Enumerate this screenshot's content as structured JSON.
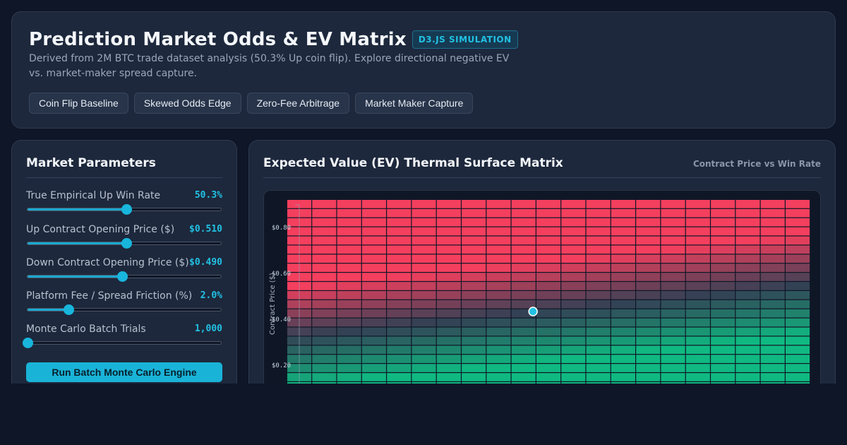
{
  "header": {
    "title": "Prediction Market Odds & EV Matrix",
    "badge": "D3.JS SIMULATION",
    "subtitle": "Derived from 2M BTC trade dataset analysis (50.3% Up coin flip). Explore directional negative EV vs. market-maker spread capture.",
    "scenarios": [
      "Coin Flip Baseline",
      "Skewed Odds Edge",
      "Zero-Fee Arbitrage",
      "Market Maker Capture"
    ]
  },
  "params": {
    "title": "Market Parameters",
    "items": [
      {
        "label": "True Empirical Up Win Rate",
        "value": "50.3%",
        "level": 0.51
      },
      {
        "label": "Up Contract Opening Price ($)",
        "value": "$0.510",
        "level": 0.51
      },
      {
        "label": "Down Contract Opening Price ($)",
        "value": "$0.490",
        "level": 0.49
      },
      {
        "label": "Platform Fee / Spread Friction (%)",
        "value": "2.0%",
        "level": 0.21
      },
      {
        "label": "Monte Carlo Batch Trials",
        "value": "1,000",
        "level": 0.0
      }
    ],
    "run_label": "Run Batch Monte Carlo Engine"
  },
  "chart": {
    "title": "Expected Value (EV) Thermal Surface Matrix",
    "subtitle": "Contract Price vs Win Rate",
    "ylabel": "Contract Price ($)",
    "yticks": [
      "$0.80",
      "$0.60",
      "$0.40",
      "$0.20"
    ],
    "colors": {
      "negative": "#f43f5e",
      "neutral": "#334155",
      "positive": "#10b981",
      "marker": "#22c1e4"
    }
  },
  "chart_data": {
    "type": "heatmap",
    "title": "Expected Value (EV) Thermal Surface Matrix",
    "ylabel": "Contract Price ($)",
    "y_ticks": [
      0.8,
      0.6,
      0.4,
      0.2
    ],
    "marker": {
      "win_rate": 0.503,
      "price": 0.51
    }
  }
}
